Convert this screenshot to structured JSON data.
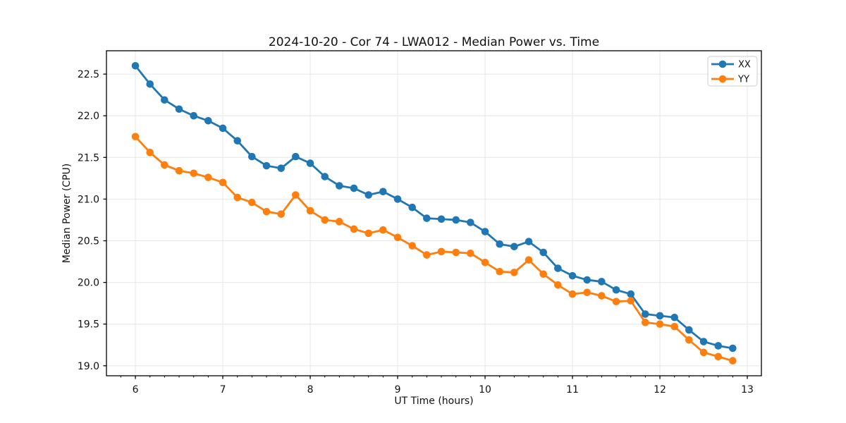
{
  "chart_data": {
    "type": "line",
    "title": "2024-10-20 - Cor 74 - LWA012 - Median Power vs. Time",
    "xlabel": "UT Time (hours)",
    "ylabel": "Median Power (CPU)",
    "xlim": [
      5.669,
      13.161
    ],
    "ylim": [
      18.88,
      22.78
    ],
    "xticks": [
      6,
      7,
      8,
      9,
      10,
      11,
      12,
      13
    ],
    "xtick_labels": [
      "6",
      "7",
      "8",
      "9",
      "10",
      "11",
      "12",
      "13"
    ],
    "yticks": [
      19.0,
      19.5,
      20.0,
      20.5,
      21.0,
      21.5,
      22.0,
      22.5
    ],
    "ytick_labels": [
      "19.0",
      "19.5",
      "20.0",
      "20.5",
      "21.0",
      "21.5",
      "22.0",
      "22.5"
    ],
    "x_minor_step": 0.166667,
    "grid": true,
    "legend_position": "upper right",
    "colors": {
      "grid": "#e6e6e6",
      "spine": "#000000",
      "text": "#111111",
      "legend_border": "#cccccc",
      "legend_bg": "#ffffff"
    },
    "x": [
      6,
      6.167,
      6.333,
      6.5,
      6.667,
      6.833,
      7,
      7.167,
      7.333,
      7.5,
      7.667,
      7.833,
      8,
      8.167,
      8.333,
      8.5,
      8.667,
      8.833,
      9,
      9.167,
      9.333,
      9.5,
      9.667,
      9.833,
      10,
      10.167,
      10.333,
      10.5,
      10.667,
      10.833,
      11,
      11.167,
      11.333,
      11.5,
      11.667,
      11.833,
      12,
      12.167,
      12.333,
      12.5,
      12.667,
      12.833
    ],
    "series": [
      {
        "name": "XX",
        "color": "#1f77b4",
        "values": [
          22.6,
          22.38,
          22.19,
          22.08,
          22.0,
          21.94,
          21.85,
          21.7,
          21.51,
          21.4,
          21.37,
          21.51,
          21.43,
          21.27,
          21.16,
          21.13,
          21.05,
          21.09,
          21.0,
          20.9,
          20.77,
          20.76,
          20.75,
          20.72,
          20.61,
          20.46,
          20.43,
          20.49,
          20.36,
          20.17,
          20.08,
          20.03,
          20.01,
          19.91,
          19.86,
          19.62,
          19.6,
          19.58,
          19.43,
          19.29,
          19.24,
          19.21
        ]
      },
      {
        "name": "YY",
        "color": "#ff7f0e",
        "values": [
          21.75,
          21.56,
          21.41,
          21.34,
          21.31,
          21.26,
          21.2,
          21.02,
          20.96,
          20.85,
          20.82,
          21.05,
          20.86,
          20.75,
          20.73,
          20.64,
          20.59,
          20.63,
          20.54,
          20.44,
          20.33,
          20.37,
          20.36,
          20.35,
          20.24,
          20.13,
          20.12,
          20.27,
          20.1,
          19.97,
          19.86,
          19.88,
          19.84,
          19.77,
          19.78,
          19.52,
          19.5,
          19.47,
          19.31,
          19.16,
          19.11,
          19.06
        ]
      }
    ]
  }
}
